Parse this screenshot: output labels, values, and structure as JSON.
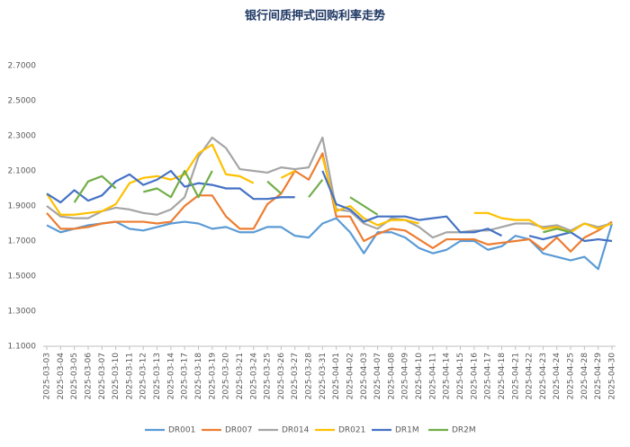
{
  "chart_data": {
    "type": "line",
    "title": "银行间质押式回购利率走势",
    "categories": [
      "2025-03-03",
      "2025-03-04",
      "2025-03-05",
      "2025-03-06",
      "2025-03-07",
      "2025-03-10",
      "2025-03-11",
      "2025-03-12",
      "2025-03-13",
      "2025-03-14",
      "2025-03-17",
      "2025-03-18",
      "2025-03-19",
      "2025-03-20",
      "2025-03-21",
      "2025-03-24",
      "2025-03-25",
      "2025-03-26",
      "2025-03-27",
      "2025-03-28",
      "2025-03-31",
      "2025-04-01",
      "2025-04-02",
      "2025-04-03",
      "2025-04-07",
      "2025-04-08",
      "2025-04-09",
      "2025-04-10",
      "2025-04-11",
      "2025-04-14",
      "2025-04-15",
      "2025-04-16",
      "2025-04-17",
      "2025-04-18",
      "2025-04-21",
      "2025-04-22",
      "2025-04-23",
      "2025-04-24",
      "2025-04-25",
      "2025-04-28",
      "2025-04-29",
      "2025-04-30"
    ],
    "series": [
      {
        "name": "DR001",
        "color": "#5b9bd5",
        "values": [
          1.79,
          1.75,
          1.77,
          1.79,
          1.8,
          1.81,
          1.77,
          1.76,
          1.78,
          1.8,
          1.81,
          1.8,
          1.77,
          1.78,
          1.75,
          1.75,
          1.78,
          1.78,
          1.73,
          1.72,
          1.8,
          1.83,
          1.75,
          1.63,
          1.75,
          1.75,
          1.72,
          1.66,
          1.63,
          1.65,
          1.7,
          1.7,
          1.65,
          1.67,
          1.73,
          1.71,
          1.63,
          1.61,
          1.59,
          1.61,
          1.54,
          1.8
        ]
      },
      {
        "name": "DR007",
        "color": "#ed7d31",
        "values": [
          1.86,
          1.77,
          1.77,
          1.78,
          1.8,
          1.81,
          1.81,
          1.81,
          1.8,
          1.81,
          1.9,
          1.96,
          1.96,
          1.84,
          1.77,
          1.77,
          1.91,
          1.97,
          2.1,
          2.05,
          2.2,
          1.84,
          1.84,
          1.7,
          1.74,
          1.77,
          1.76,
          1.71,
          1.66,
          1.71,
          1.71,
          1.71,
          1.68,
          1.69,
          1.7,
          1.71,
          1.65,
          1.72,
          1.64,
          1.72,
          1.76,
          1.81
        ]
      },
      {
        "name": "DR014",
        "color": "#a5a5a5",
        "values": [
          1.9,
          1.84,
          1.83,
          1.83,
          1.87,
          1.89,
          1.88,
          1.86,
          1.85,
          1.88,
          1.95,
          2.18,
          2.29,
          2.23,
          2.11,
          2.1,
          2.09,
          2.12,
          2.11,
          2.12,
          2.29,
          1.88,
          1.87,
          1.8,
          1.77,
          1.83,
          1.82,
          1.78,
          1.72,
          1.75,
          1.75,
          1.76,
          1.76,
          1.78,
          1.8,
          1.8,
          1.78,
          1.79,
          1.76,
          1.8,
          1.78,
          1.8
        ]
      },
      {
        "name": "DR021",
        "color": "#ffc000",
        "values": [
          1.97,
          1.85,
          1.85,
          1.86,
          1.87,
          1.91,
          2.03,
          2.06,
          2.07,
          2.05,
          2.08,
          2.2,
          2.25,
          2.08,
          2.07,
          2.03,
          null,
          2.06,
          2.1,
          null,
          2.18,
          1.87,
          1.9,
          1.83,
          1.79,
          1.82,
          1.82,
          1.8,
          null,
          null,
          null,
          1.86,
          1.86,
          1.83,
          1.82,
          1.82,
          1.77,
          1.78,
          1.75,
          1.8,
          1.77,
          1.8
        ]
      },
      {
        "name": "DR1M",
        "color": "#4472c4",
        "values": [
          1.97,
          1.92,
          1.99,
          1.93,
          1.96,
          2.04,
          2.08,
          2.02,
          2.05,
          2.1,
          2.01,
          2.03,
          2.02,
          2.0,
          2.0,
          1.94,
          1.94,
          1.95,
          1.95,
          null,
          2.1,
          1.91,
          1.88,
          1.81,
          1.84,
          1.84,
          1.84,
          1.82,
          1.83,
          1.84,
          1.75,
          1.75,
          1.77,
          1.73,
          null,
          1.73,
          1.71,
          1.73,
          1.75,
          1.7,
          1.71,
          1.7
        ]
      },
      {
        "name": "DR2M",
        "color": "#70ad47",
        "values": [
          null,
          null,
          1.92,
          2.04,
          2.07,
          2.0,
          null,
          1.98,
          2.0,
          1.95,
          2.1,
          1.95,
          2.1,
          null,
          null,
          null,
          2.04,
          1.97,
          null,
          1.95,
          2.05,
          null,
          1.95,
          1.9,
          1.85,
          null,
          null,
          null,
          null,
          null,
          null,
          null,
          null,
          null,
          null,
          null,
          1.75,
          1.77,
          1.75,
          null,
          null,
          null
        ]
      }
    ],
    "ylim": [
      1.1,
      2.7
    ],
    "yticks": [
      {
        "value": 1.1,
        "label": "1.1000"
      },
      {
        "value": 1.3,
        "label": "1.3000"
      },
      {
        "value": 1.5,
        "label": "1.5000"
      },
      {
        "value": 1.7,
        "label": "1.7000"
      },
      {
        "value": 1.9,
        "label": "1.9000"
      },
      {
        "value": 2.1,
        "label": "2.1000"
      },
      {
        "value": 2.3,
        "label": "2.3000"
      },
      {
        "value": 2.5,
        "label": "2.5000"
      },
      {
        "value": 2.7,
        "label": "2.7000"
      }
    ],
    "grid": false,
    "legend": "bottom"
  }
}
